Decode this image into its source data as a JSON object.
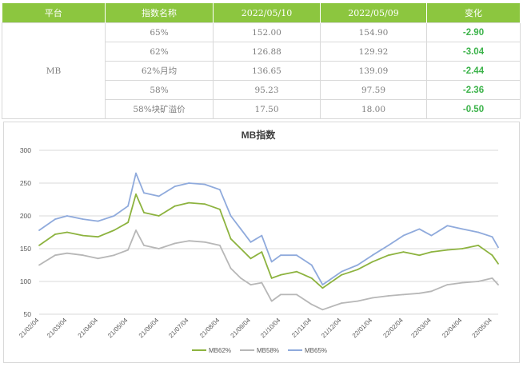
{
  "table": {
    "headers": [
      "平台",
      "指数名称",
      "2022/05/10",
      "2022/05/09",
      "变化"
    ],
    "platform": "MB",
    "rows": [
      {
        "name": "65%",
        "d1": "152.00",
        "d2": "154.90",
        "chg": "-2.90"
      },
      {
        "name": "62%",
        "d1": "126.88",
        "d2": "129.92",
        "chg": "-3.04"
      },
      {
        "name": "62%月均",
        "d1": "136.65",
        "d2": "139.09",
        "chg": "-2.44"
      },
      {
        "name": "58%",
        "d1": "95.23",
        "d2": "97.59",
        "chg": "-2.36"
      },
      {
        "name": "58%块矿溢价",
        "d1": "17.50",
        "d2": "18.00",
        "chg": "-0.50"
      }
    ],
    "header_color": "#8cc63f",
    "change_color": "#3cb34a"
  },
  "chart_data": {
    "type": "line",
    "title": "MB指数",
    "ylim": [
      50,
      300
    ],
    "yticks": [
      "50",
      "100",
      "150",
      "200",
      "250",
      "300"
    ],
    "x_range": [
      "2021-02-04",
      "2022-05-10"
    ],
    "xticks": [
      "21/02/04",
      "21/03/04",
      "21/04/04",
      "21/05/04",
      "21/06/04",
      "21/07/04",
      "21/08/04",
      "21/09/04",
      "21/10/04",
      "21/11/04",
      "21/12/04",
      "22/01/04",
      "22/02/04",
      "22/03/04",
      "22/04/04",
      "22/05/04"
    ],
    "legend_position": "bottom",
    "grid": true,
    "series": [
      {
        "name": "MB62%",
        "color": "#8db33f",
        "points": [
          [
            "2021-02-04",
            155
          ],
          [
            "2021-02-20",
            172
          ],
          [
            "2021-03-04",
            175
          ],
          [
            "2021-03-20",
            170
          ],
          [
            "2021-04-04",
            168
          ],
          [
            "2021-04-20",
            178
          ],
          [
            "2021-05-04",
            190
          ],
          [
            "2021-05-12",
            233
          ],
          [
            "2021-05-20",
            205
          ],
          [
            "2021-06-04",
            200
          ],
          [
            "2021-06-20",
            215
          ],
          [
            "2021-07-04",
            220
          ],
          [
            "2021-07-20",
            218
          ],
          [
            "2021-08-04",
            210
          ],
          [
            "2021-08-15",
            165
          ],
          [
            "2021-08-25",
            150
          ],
          [
            "2021-09-04",
            135
          ],
          [
            "2021-09-15",
            145
          ],
          [
            "2021-09-25",
            105
          ],
          [
            "2021-10-04",
            110
          ],
          [
            "2021-10-20",
            115
          ],
          [
            "2021-11-04",
            105
          ],
          [
            "2021-11-15",
            90
          ],
          [
            "2021-12-04",
            110
          ],
          [
            "2021-12-20",
            118
          ],
          [
            "2022-01-04",
            130
          ],
          [
            "2022-01-20",
            140
          ],
          [
            "2022-02-04",
            145
          ],
          [
            "2022-02-20",
            140
          ],
          [
            "2022-03-04",
            145
          ],
          [
            "2022-03-20",
            148
          ],
          [
            "2022-04-04",
            150
          ],
          [
            "2022-04-20",
            155
          ],
          [
            "2022-05-04",
            140
          ],
          [
            "2022-05-10",
            127
          ]
        ]
      },
      {
        "name": "MB58%",
        "color": "#b7b7b7",
        "points": [
          [
            "2021-02-04",
            125
          ],
          [
            "2021-02-20",
            140
          ],
          [
            "2021-03-04",
            143
          ],
          [
            "2021-03-20",
            140
          ],
          [
            "2021-04-04",
            135
          ],
          [
            "2021-04-20",
            140
          ],
          [
            "2021-05-04",
            148
          ],
          [
            "2021-05-12",
            178
          ],
          [
            "2021-05-20",
            155
          ],
          [
            "2021-06-04",
            150
          ],
          [
            "2021-06-20",
            158
          ],
          [
            "2021-07-04",
            162
          ],
          [
            "2021-07-20",
            160
          ],
          [
            "2021-08-04",
            155
          ],
          [
            "2021-08-15",
            120
          ],
          [
            "2021-08-25",
            105
          ],
          [
            "2021-09-04",
            95
          ],
          [
            "2021-09-15",
            98
          ],
          [
            "2021-09-25",
            70
          ],
          [
            "2021-10-04",
            80
          ],
          [
            "2021-10-20",
            80
          ],
          [
            "2021-11-04",
            65
          ],
          [
            "2021-11-15",
            57
          ],
          [
            "2021-12-04",
            67
          ],
          [
            "2021-12-20",
            70
          ],
          [
            "2022-01-04",
            75
          ],
          [
            "2022-01-20",
            78
          ],
          [
            "2022-02-04",
            80
          ],
          [
            "2022-02-20",
            82
          ],
          [
            "2022-03-04",
            85
          ],
          [
            "2022-03-20",
            95
          ],
          [
            "2022-04-04",
            98
          ],
          [
            "2022-04-20",
            100
          ],
          [
            "2022-05-04",
            105
          ],
          [
            "2022-05-10",
            95
          ]
        ]
      },
      {
        "name": "MB65%",
        "color": "#8faadc",
        "points": [
          [
            "2021-02-04",
            178
          ],
          [
            "2021-02-20",
            195
          ],
          [
            "2021-03-04",
            200
          ],
          [
            "2021-03-20",
            195
          ],
          [
            "2021-04-04",
            192
          ],
          [
            "2021-04-20",
            200
          ],
          [
            "2021-05-04",
            215
          ],
          [
            "2021-05-12",
            265
          ],
          [
            "2021-05-20",
            235
          ],
          [
            "2021-06-04",
            230
          ],
          [
            "2021-06-20",
            245
          ],
          [
            "2021-07-04",
            250
          ],
          [
            "2021-07-20",
            248
          ],
          [
            "2021-08-04",
            240
          ],
          [
            "2021-08-15",
            200
          ],
          [
            "2021-08-25",
            180
          ],
          [
            "2021-09-04",
            160
          ],
          [
            "2021-09-15",
            170
          ],
          [
            "2021-09-25",
            130
          ],
          [
            "2021-10-04",
            140
          ],
          [
            "2021-10-20",
            140
          ],
          [
            "2021-11-04",
            125
          ],
          [
            "2021-11-15",
            95
          ],
          [
            "2021-12-04",
            115
          ],
          [
            "2021-12-20",
            125
          ],
          [
            "2022-01-04",
            140
          ],
          [
            "2022-01-20",
            155
          ],
          [
            "2022-02-04",
            170
          ],
          [
            "2022-02-20",
            180
          ],
          [
            "2022-03-04",
            170
          ],
          [
            "2022-03-20",
            185
          ],
          [
            "2022-04-04",
            180
          ],
          [
            "2022-04-20",
            175
          ],
          [
            "2022-05-04",
            168
          ],
          [
            "2022-05-10",
            152
          ]
        ]
      }
    ]
  }
}
